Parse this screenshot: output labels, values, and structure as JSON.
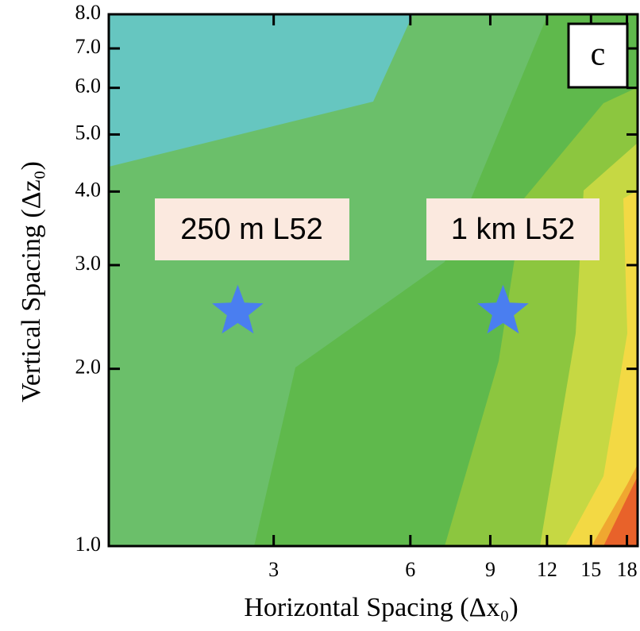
{
  "chart_data": {
    "type": "contour",
    "panel_label": "c",
    "xlabel": "Horizontal Spacing (Δx₀)",
    "ylabel": "Vertical Spacing (Δz₀)",
    "xscale": "log",
    "yscale": "log",
    "xlim": [
      1.3,
      19
    ],
    "ylim": [
      1,
      8
    ],
    "xticks": [
      3,
      6,
      9,
      12,
      15,
      18
    ],
    "yticks": [
      {
        "value": 1,
        "label": "1.0"
      },
      {
        "value": 2,
        "label": "2.0"
      },
      {
        "value": 3,
        "label": "3.0"
      },
      {
        "value": 4,
        "label": "4.0"
      },
      {
        "value": 5,
        "label": "5.0"
      },
      {
        "value": 6,
        "label": "6.0"
      },
      {
        "value": 7,
        "label": "7.0"
      },
      {
        "value": 8,
        "label": "8.0"
      }
    ],
    "points": {
      "color": "#4a7ef0",
      "x": [
        2.5,
        9.6
      ],
      "y": [
        2.5,
        2.5
      ]
    },
    "annotations": [
      "250 m L52",
      "1 km L52"
    ]
  }
}
